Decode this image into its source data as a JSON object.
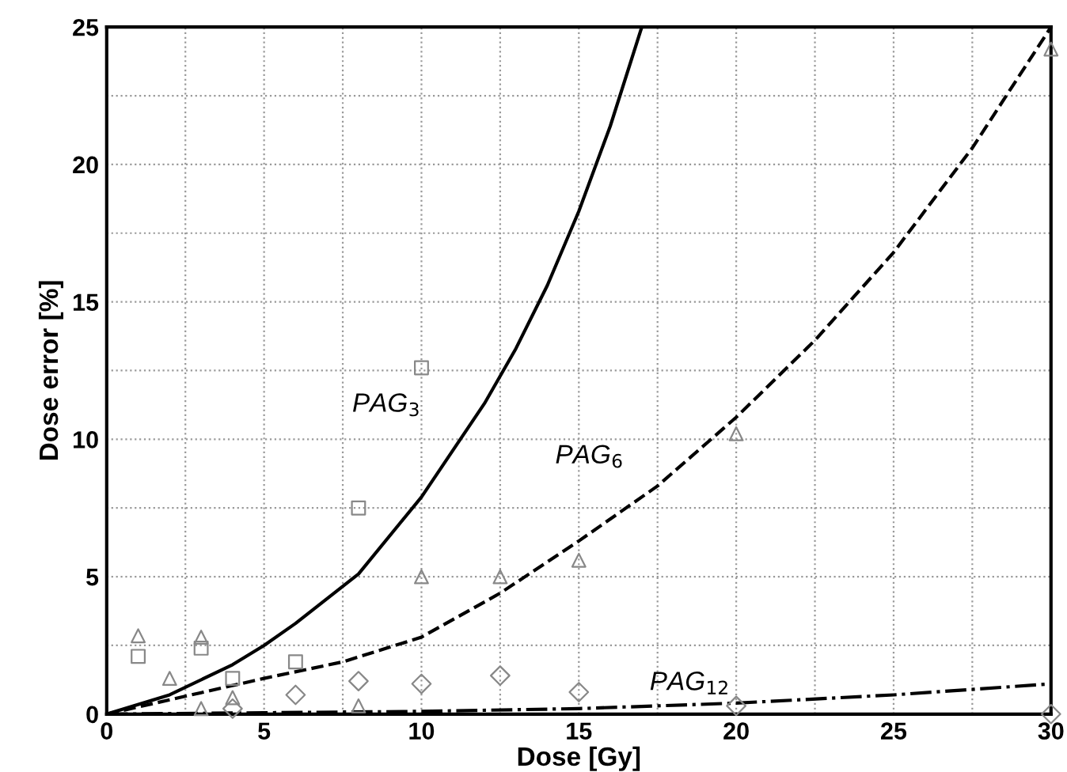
{
  "chart_data": {
    "type": "line",
    "xlabel": "Dose [Gy]",
    "ylabel": "Dose error [%]",
    "xlim": [
      0,
      30
    ],
    "ylim": [
      0,
      25
    ],
    "xticks": [
      0,
      {
        "value": 2.5,
        "label": null
      },
      5,
      {
        "value": 7.5,
        "label": null
      },
      10,
      {
        "value": 12.5,
        "label": null
      },
      15,
      {
        "value": 17.5,
        "label": null
      },
      20,
      {
        "value": 22.5,
        "label": null
      },
      25,
      {
        "value": 27.5,
        "label": null
      },
      30
    ],
    "yticks": [
      0,
      {
        "value": 2.5,
        "label": null
      },
      5,
      {
        "value": 7.5,
        "label": null
      },
      10,
      {
        "value": 12.5,
        "label": null
      },
      15,
      {
        "value": 17.5,
        "label": null
      },
      20,
      {
        "value": 22.5,
        "label": null
      },
      25
    ],
    "grid": true,
    "series": [
      {
        "line_style": "solid",
        "color": "#000000",
        "x": [
          0,
          2,
          4,
          5,
          6,
          8,
          10,
          12,
          13,
          14,
          15,
          16,
          17
        ],
        "values": [
          0,
          0.7,
          1.8,
          2.5,
          3.3,
          5.1,
          7.9,
          11.3,
          13.3,
          15.6,
          18.3,
          21.4,
          25
        ]
      },
      {
        "line_style": "dashed",
        "color": "#000000",
        "x": [
          0,
          5,
          7.5,
          10,
          12.5,
          15,
          17.5,
          20,
          22.5,
          25,
          27.5,
          30
        ],
        "values": [
          0,
          1.3,
          1.9,
          2.8,
          4.4,
          6.3,
          8.3,
          10.8,
          13.6,
          16.8,
          20.6,
          25
        ]
      },
      {
        "line_style": "dashdot",
        "color": "#000000",
        "x": [
          0,
          5,
          10,
          15,
          20,
          25,
          30
        ],
        "values": [
          0,
          0.05,
          0.1,
          0.2,
          0.4,
          0.7,
          1.1
        ]
      },
      {
        "type": "scatter",
        "marker": "square",
        "color": "#888888",
        "x": [
          1,
          3,
          4,
          6,
          8,
          10
        ],
        "values": [
          2.1,
          2.4,
          1.3,
          1.9,
          7.5,
          12.6
        ]
      },
      {
        "type": "scatter",
        "marker": "triangle",
        "color": "#888888",
        "x": [
          1,
          2,
          3,
          3,
          4,
          8,
          10,
          12.5,
          15,
          20,
          30
        ],
        "values": [
          2.85,
          1.3,
          2.8,
          0.2,
          0.6,
          0.3,
          5.0,
          5.0,
          5.6,
          10.2,
          24.2
        ]
      },
      {
        "type": "scatter",
        "marker": "diamond",
        "color": "#888888",
        "x": [
          4,
          6,
          8,
          10,
          12.5,
          15,
          20,
          30
        ],
        "values": [
          0.2,
          0.7,
          1.2,
          1.1,
          1.4,
          0.8,
          0.3,
          0
        ]
      }
    ],
    "annotations": [
      "PAG$_{3}$",
      "PAG$_{6}$",
      "PAG$_{12}$"
    ]
  }
}
